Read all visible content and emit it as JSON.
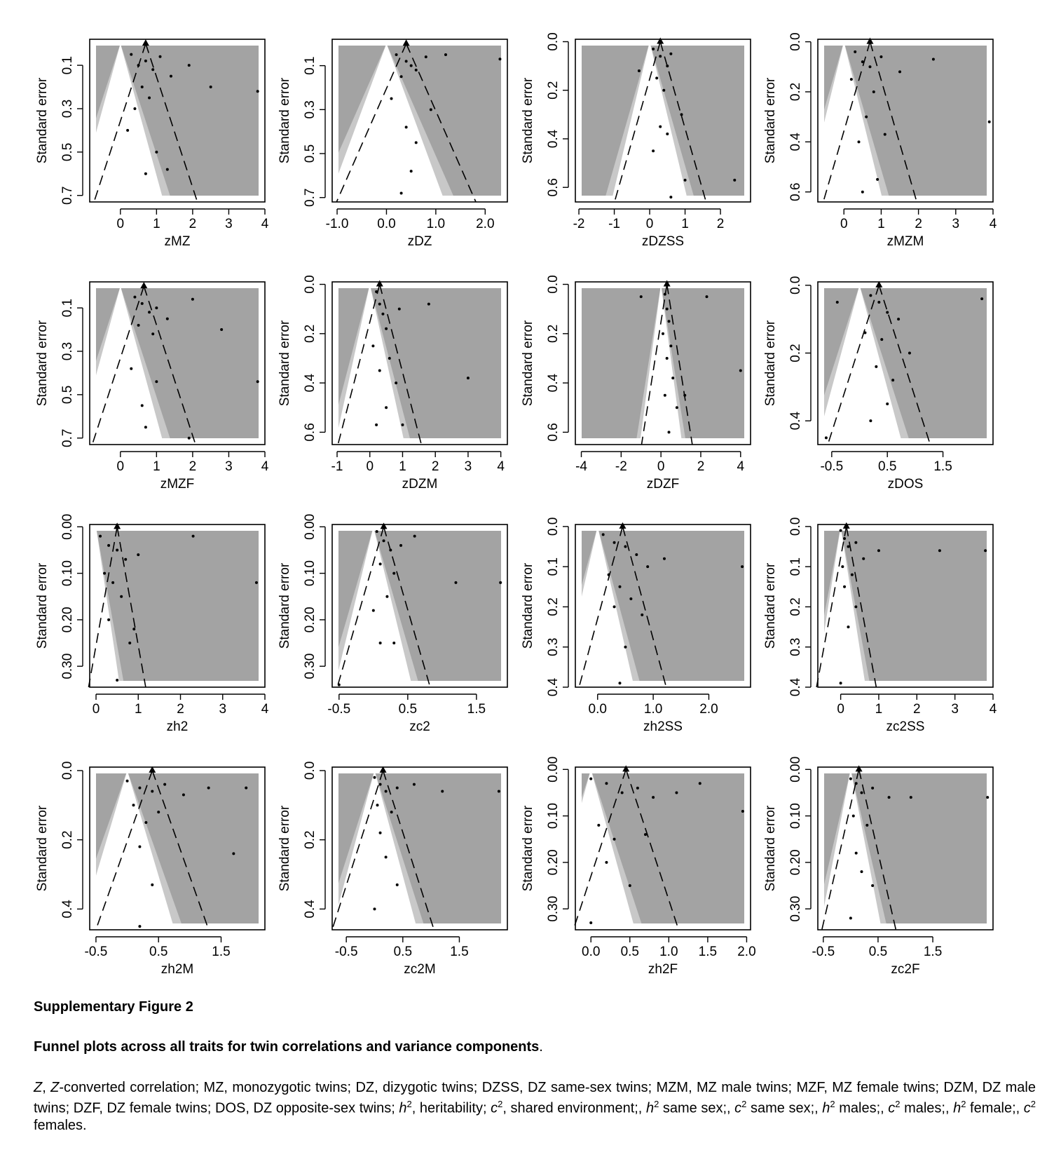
{
  "chart_data": [
    {
      "type": "scatter",
      "x_label": "zMZ",
      "y_label": "Standard error",
      "xlim": [
        -0.85,
        4.0
      ],
      "ylim": [
        -0.02,
        0.73
      ],
      "xticks": [
        0,
        1,
        2,
        3,
        4
      ],
      "yticks": [
        0.1,
        0.3,
        0.5,
        0.7
      ],
      "center": 0.7,
      "contour_z": [
        1.645,
        1.96
      ],
      "x": [
        0.3,
        0.5,
        0.7,
        0.9,
        1.1,
        0.6,
        0.8,
        1.4,
        1.9,
        2.5,
        3.8,
        0.2,
        1.0,
        0.7,
        0.4,
        1.3
      ],
      "y": [
        0.05,
        0.1,
        0.08,
        0.12,
        0.06,
        0.2,
        0.25,
        0.15,
        0.1,
        0.2,
        0.22,
        0.4,
        0.5,
        0.6,
        0.3,
        0.58
      ]
    },
    {
      "type": "scatter",
      "x_label": "zDZ",
      "y_label": "Standard error",
      "xlim": [
        -1.1,
        2.45
      ],
      "ylim": [
        -0.02,
        0.72
      ],
      "xticks": [
        {
          "value": -1,
          "label": "-1.0"
        },
        {
          "value": 0,
          "label": "0.0"
        },
        {
          "value": 1,
          "label": "1.0"
        },
        {
          "value": 2,
          "label": "2.0"
        }
      ],
      "yticks": [
        0.1,
        0.3,
        0.5,
        0.7
      ],
      "center": 0.4,
      "contour_z": [
        1.645,
        1.96
      ],
      "x": [
        0.2,
        0.4,
        0.5,
        0.6,
        0.3,
        0.8,
        1.2,
        0.1,
        0.9,
        0.4,
        0.6,
        2.3,
        0.5,
        0.3
      ],
      "y": [
        0.05,
        0.08,
        0.1,
        0.12,
        0.15,
        0.06,
        0.05,
        0.25,
        0.3,
        0.38,
        0.45,
        0.07,
        0.58,
        0.68
      ]
    },
    {
      "type": "scatter",
      "x_label": "zDZSS",
      "y_label": "Standard error",
      "xlim": [
        -2.1,
        2.85
      ],
      "ylim": [
        -0.01,
        0.66
      ],
      "xticks": [
        -2,
        -1,
        0,
        1,
        2
      ],
      "yticks": [
        {
          "value": 0,
          "label": "0.0"
        },
        0.2,
        0.4,
        0.6
      ],
      "center": 0.3,
      "contour_z": [
        1.645,
        1.96
      ],
      "x": [
        0.1,
        0.3,
        0.5,
        0.2,
        0.4,
        0.6,
        -0.3,
        0.9,
        0.3,
        0.5,
        0.1,
        1.0,
        2.4,
        0.6
      ],
      "y": [
        0.03,
        0.06,
        0.1,
        0.15,
        0.2,
        0.05,
        0.12,
        0.3,
        0.35,
        0.38,
        0.45,
        0.57,
        0.57,
        0.64
      ]
    },
    {
      "type": "scatter",
      "x_label": "zMZM",
      "y_label": "Standard error",
      "xlim": [
        -0.7,
        4.0
      ],
      "ylim": [
        -0.01,
        0.64
      ],
      "xticks": [
        0,
        1,
        2,
        3,
        4
      ],
      "yticks": [
        {
          "value": 0,
          "label": "0.0"
        },
        0.2,
        0.4,
        0.6
      ],
      "center": 0.7,
      "contour_z": [
        1.645,
        1.96
      ],
      "x": [
        0.3,
        0.5,
        0.7,
        1.0,
        0.2,
        0.8,
        1.5,
        2.4,
        0.6,
        1.1,
        0.4,
        3.9,
        0.9,
        0.5
      ],
      "y": [
        0.04,
        0.08,
        0.1,
        0.06,
        0.15,
        0.2,
        0.12,
        0.07,
        0.3,
        0.37,
        0.4,
        0.32,
        0.55,
        0.6
      ]
    },
    {
      "type": "scatter",
      "x_label": "zMZF",
      "y_label": "Standard error",
      "xlim": [
        -0.85,
        4.0
      ],
      "ylim": [
        -0.02,
        0.73
      ],
      "xticks": [
        0,
        1,
        2,
        3,
        4
      ],
      "yticks": [
        0.1,
        0.3,
        0.5,
        0.7
      ],
      "center": 0.65,
      "contour_z": [
        1.645,
        1.96
      ],
      "x": [
        0.4,
        0.6,
        0.8,
        1.0,
        0.5,
        0.9,
        1.3,
        2.0,
        2.8,
        0.3,
        1.0,
        0.6,
        3.8,
        0.7,
        1.9
      ],
      "y": [
        0.05,
        0.08,
        0.12,
        0.1,
        0.18,
        0.22,
        0.15,
        0.06,
        0.2,
        0.38,
        0.44,
        0.55,
        0.44,
        0.65,
        0.7
      ]
    },
    {
      "type": "scatter",
      "x_label": "zDZM",
      "y_label": "Standard error",
      "xlim": [
        -1.15,
        4.2
      ],
      "ylim": [
        -0.01,
        0.65
      ],
      "xticks": [
        -1,
        0,
        1,
        2,
        3,
        4
      ],
      "yticks": [
        {
          "value": 0,
          "label": "0.0"
        },
        0.2,
        0.4,
        0.6
      ],
      "center": 0.3,
      "contour_z": [
        1.645,
        1.96
      ],
      "x": [
        0.2,
        0.3,
        0.4,
        0.5,
        0.1,
        0.6,
        0.9,
        1.8,
        0.3,
        0.8,
        0.5,
        3.0,
        0.2,
        1.0
      ],
      "y": [
        0.03,
        0.08,
        0.12,
        0.18,
        0.25,
        0.3,
        0.1,
        0.08,
        0.35,
        0.4,
        0.5,
        0.38,
        0.57,
        0.57
      ]
    },
    {
      "type": "scatter",
      "x_label": "zDZF",
      "y_label": "Standard error",
      "xlim": [
        -4.3,
        4.5
      ],
      "ylim": [
        -0.01,
        0.65
      ],
      "xticks": [
        -4,
        -2,
        0,
        2,
        4
      ],
      "yticks": [
        {
          "value": 0,
          "label": "0.0"
        },
        0.2,
        0.4,
        0.6
      ],
      "center": 0.3,
      "contour_z": [
        1.645,
        1.96
      ],
      "x": [
        0.2,
        0.3,
        0.4,
        0.1,
        0.5,
        0.3,
        -1.0,
        2.3,
        0.6,
        0.2,
        1.2,
        0.8,
        4.0,
        0.4
      ],
      "y": [
        0.04,
        0.1,
        0.15,
        0.2,
        0.25,
        0.3,
        0.05,
        0.05,
        0.38,
        0.45,
        0.45,
        0.5,
        0.35,
        0.6
      ]
    },
    {
      "type": "scatter",
      "x_label": "zDOS",
      "y_label": "Standard error",
      "xlim": [
        -0.75,
        2.4
      ],
      "ylim": [
        -0.01,
        0.47
      ],
      "xticks": [
        -0.5,
        0.5,
        1.5
      ],
      "yticks": [
        {
          "value": 0,
          "label": "0.0"
        },
        0.2,
        0.4
      ],
      "center": 0.35,
      "contour_z": [
        1.645,
        1.96
      ],
      "x": [
        0.2,
        0.35,
        0.5,
        0.7,
        0.1,
        0.4,
        0.9,
        2.2,
        -0.4,
        0.3,
        0.6,
        0.5,
        0.2,
        -0.6
      ],
      "y": [
        0.03,
        0.05,
        0.08,
        0.1,
        0.14,
        0.16,
        0.2,
        0.04,
        0.05,
        0.24,
        0.28,
        0.35,
        0.4,
        0.45
      ]
    },
    {
      "type": "scatter",
      "x_label": "zh2",
      "y_label": "Standard error",
      "xlim": [
        -0.15,
        4.0
      ],
      "ylim": [
        -0.005,
        0.345
      ],
      "xticks": [
        0,
        1,
        2,
        3,
        4
      ],
      "yticks": [
        {
          "value": 0,
          "label": "0.00"
        },
        {
          "value": 0.1,
          "label": "0.10"
        },
        {
          "value": 0.2,
          "label": "0.20"
        },
        {
          "value": 0.3,
          "label": "0.30"
        }
      ],
      "center": 0.5,
      "contour_z": [
        1.645,
        1.96
      ],
      "x": [
        0.1,
        0.3,
        0.5,
        0.7,
        0.2,
        0.4,
        1.0,
        2.3,
        3.8,
        0.6,
        0.3,
        0.9,
        0.8,
        0.5
      ],
      "y": [
        0.02,
        0.04,
        0.05,
        0.07,
        0.1,
        0.12,
        0.06,
        0.02,
        0.12,
        0.15,
        0.2,
        0.22,
        0.25,
        0.33
      ]
    },
    {
      "type": "scatter",
      "x_label": "zc2",
      "y_label": "Standard error",
      "xlim": [
        -0.6,
        1.95
      ],
      "ylim": [
        -0.005,
        0.345
      ],
      "xticks": [
        -0.5,
        0.5,
        1.5
      ],
      "yticks": [
        {
          "value": 0,
          "label": "0.00"
        },
        {
          "value": 0.1,
          "label": "0.10"
        },
        {
          "value": 0.2,
          "label": "0.20"
        },
        {
          "value": 0.3,
          "label": "0.30"
        }
      ],
      "center": 0.15,
      "contour_z": [
        1.645,
        1.96
      ],
      "x": [
        0.05,
        0.15,
        0.25,
        0.4,
        0.6,
        0.1,
        0.3,
        1.2,
        1.85,
        0.2,
        0.0,
        0.1,
        0.3,
        -0.5
      ],
      "y": [
        0.01,
        0.03,
        0.05,
        0.04,
        0.02,
        0.08,
        0.1,
        0.12,
        0.12,
        0.15,
        0.18,
        0.25,
        0.25,
        0.34
      ]
    },
    {
      "type": "scatter",
      "x_label": "zh2SS",
      "y_label": "Standard error",
      "xlim": [
        -0.4,
        2.75
      ],
      "ylim": [
        -0.005,
        0.4
      ],
      "xticks": [
        {
          "value": 0,
          "label": "0.0"
        },
        {
          "value": 1,
          "label": "1.0"
        },
        {
          "value": 2,
          "label": "2.0"
        }
      ],
      "yticks": [
        {
          "value": 0,
          "label": "0.0"
        },
        0.1,
        0.2,
        0.3,
        0.4
      ],
      "center": 0.45,
      "contour_z": [
        1.645,
        1.96
      ],
      "x": [
        0.1,
        0.3,
        0.5,
        0.7,
        0.9,
        0.2,
        0.4,
        1.2,
        2.6,
        0.6,
        0.3,
        0.8,
        0.5,
        0.4
      ],
      "y": [
        0.02,
        0.04,
        0.05,
        0.07,
        0.1,
        0.12,
        0.15,
        0.08,
        0.1,
        0.18,
        0.2,
        0.22,
        0.3,
        0.39
      ]
    },
    {
      "type": "scatter",
      "x_label": "zc2SS",
      "y_label": "Standard error",
      "xlim": [
        -0.6,
        4.0
      ],
      "ylim": [
        -0.005,
        0.4
      ],
      "xticks": [
        0,
        1,
        2,
        3,
        4
      ],
      "yticks": [
        {
          "value": 0,
          "label": "0.0"
        },
        0.1,
        0.2,
        0.3,
        0.4
      ],
      "center": 0.15,
      "contour_z": [
        1.645,
        1.96
      ],
      "x": [
        0.0,
        0.1,
        0.2,
        0.4,
        0.6,
        0.05,
        0.3,
        1.0,
        2.6,
        3.8,
        0.1,
        0.4,
        0.2,
        0.0
      ],
      "y": [
        0.01,
        0.03,
        0.05,
        0.04,
        0.08,
        0.1,
        0.12,
        0.06,
        0.06,
        0.06,
        0.15,
        0.2,
        0.25,
        0.39
      ]
    },
    {
      "type": "scatter",
      "x_label": "zh2M",
      "y_label": "Standard error",
      "xlim": [
        -0.6,
        2.2
      ],
      "ylim": [
        -0.01,
        0.46
      ],
      "xticks": [
        -0.5,
        0.5,
        1.5
      ],
      "yticks": [
        {
          "value": 0,
          "label": "0.0"
        },
        0.2,
        0.4
      ],
      "center": 0.4,
      "contour_z": [
        1.645,
        1.96
      ],
      "x": [
        0.0,
        0.2,
        0.4,
        0.6,
        0.9,
        1.3,
        1.9,
        0.1,
        0.5,
        0.3,
        0.2,
        0.4,
        1.7,
        0.2
      ],
      "y": [
        0.03,
        0.05,
        0.06,
        0.04,
        0.07,
        0.05,
        0.05,
        0.1,
        0.12,
        0.15,
        0.22,
        0.33,
        0.24,
        0.45
      ]
    },
    {
      "type": "scatter",
      "x_label": "zc2M",
      "y_label": "Standard error",
      "xlim": [
        -0.75,
        2.35
      ],
      "ylim": [
        -0.01,
        0.46
      ],
      "xticks": [
        -0.5,
        0.5,
        1.5
      ],
      "yticks": [
        {
          "value": 0,
          "label": "0.0"
        },
        0.2,
        0.4
      ],
      "center": 0.15,
      "contour_z": [
        1.645,
        1.96
      ],
      "x": [
        0.0,
        0.1,
        0.2,
        0.4,
        0.7,
        1.2,
        2.2,
        0.05,
        0.3,
        0.1,
        0.2,
        0.4,
        0.0
      ],
      "y": [
        0.02,
        0.04,
        0.06,
        0.05,
        0.04,
        0.06,
        0.06,
        0.1,
        0.12,
        0.18,
        0.25,
        0.33,
        0.4
      ]
    },
    {
      "type": "scatter",
      "x_label": "zh2F",
      "y_label": "Standard error",
      "xlim": [
        -0.2,
        2.05
      ],
      "ylim": [
        -0.005,
        0.345
      ],
      "xticks": [
        {
          "value": 0,
          "label": "0.0"
        },
        0.5,
        {
          "value": 1,
          "label": "1.0"
        },
        1.5,
        {
          "value": 2,
          "label": "2.0"
        }
      ],
      "yticks": [
        {
          "value": 0,
          "label": "0.00"
        },
        {
          "value": 0.1,
          "label": "0.10"
        },
        {
          "value": 0.2,
          "label": "0.20"
        },
        {
          "value": 0.3,
          "label": "0.30"
        }
      ],
      "center": 0.45,
      "contour_z": [
        1.645,
        1.96
      ],
      "x": [
        0.0,
        0.2,
        0.4,
        0.6,
        0.8,
        1.1,
        1.4,
        1.95,
        0.1,
        0.3,
        0.7,
        0.2,
        0.5,
        0.0
      ],
      "y": [
        0.02,
        0.03,
        0.05,
        0.04,
        0.06,
        0.05,
        0.03,
        0.09,
        0.12,
        0.15,
        0.14,
        0.2,
        0.25,
        0.33
      ]
    },
    {
      "type": "scatter",
      "x_label": "zc2F",
      "y_label": "Standard error",
      "xlim": [
        -0.6,
        2.6
      ],
      "ylim": [
        -0.005,
        0.345
      ],
      "xticks": [
        -0.5,
        0.5,
        1.5
      ],
      "yticks": [
        {
          "value": 0,
          "label": "0.00"
        },
        {
          "value": 0.1,
          "label": "0.10"
        },
        {
          "value": 0.2,
          "label": "0.20"
        },
        {
          "value": 0.3,
          "label": "0.30"
        }
      ],
      "center": 0.15,
      "contour_z": [
        1.645,
        1.96
      ],
      "x": [
        0.0,
        0.1,
        0.2,
        0.4,
        0.7,
        1.1,
        2.5,
        0.05,
        0.3,
        0.1,
        0.2,
        0.4,
        0.0
      ],
      "y": [
        0.02,
        0.03,
        0.05,
        0.04,
        0.06,
        0.06,
        0.06,
        0.1,
        0.12,
        0.18,
        0.22,
        0.25,
        0.32
      ]
    }
  ],
  "caption": {
    "label": "Supplementary Figure 2",
    "title": "Funnel plots across all traits for twin correlations and variance components",
    "title_end": ".",
    "segments": [
      "Z",
      ", ",
      "Z",
      "-converted correlation; MZ, monozygotic twins; DZ, dizygotic twins; DZSS, DZ same-sex twins; MZM, MZ male twins; MZF, MZ female twins; DZM, DZ male twins; DZF, DZ female twins; DOS, DZ opposite-sex twins; ",
      "h",
      "2",
      ", heritability; ",
      "c",
      "2",
      ", shared environment;, ",
      "h",
      "2",
      " same sex;, ",
      "c",
      "2",
      " same sex;, ",
      "h",
      "2",
      " males;, ",
      "c",
      "2",
      " males;, ",
      "h",
      "2",
      " female;, ",
      "c",
      "2",
      " females."
    ]
  }
}
